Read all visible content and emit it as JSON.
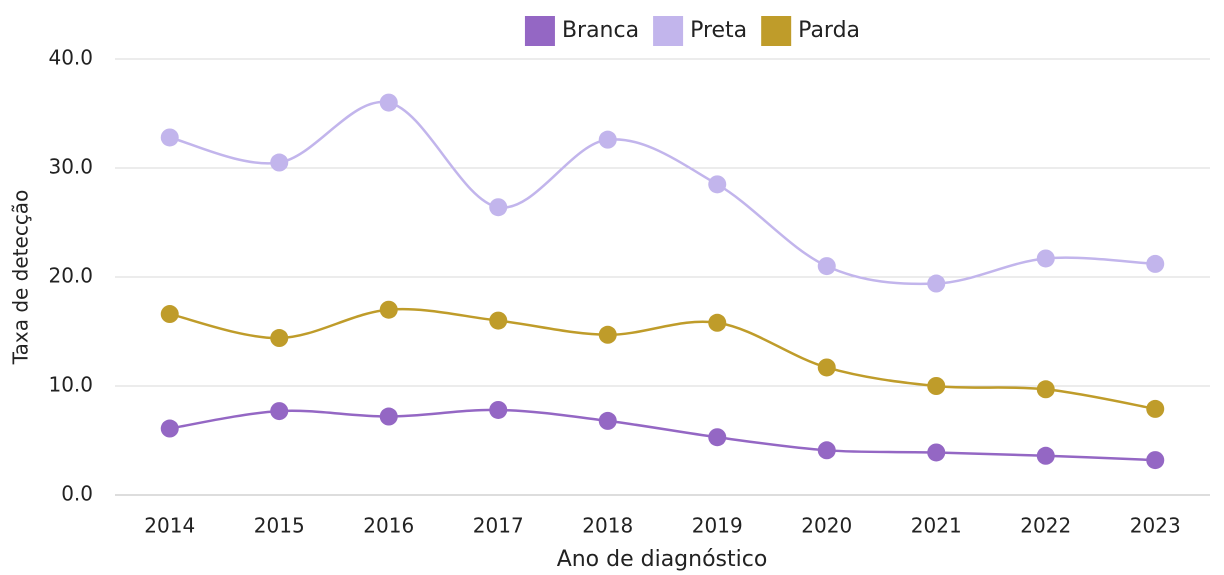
{
  "chart_data": {
    "type": "line",
    "x_label": "Ano de diagnóstico",
    "y_label": "Taxa de detecção",
    "categories": [
      "2014",
      "2015",
      "2016",
      "2017",
      "2018",
      "2019",
      "2020",
      "2021",
      "2022",
      "2023"
    ],
    "series": [
      {
        "name": "Branca",
        "color": "#9467c4",
        "values": [
          6.1,
          7.7,
          7.2,
          7.8,
          6.8,
          5.3,
          4.1,
          3.9,
          3.6,
          3.2
        ]
      },
      {
        "name": "Preta",
        "color": "#c2b5ec",
        "values": [
          32.8,
          30.5,
          36.0,
          26.4,
          32.6,
          28.5,
          21.0,
          19.4,
          21.7,
          21.2
        ]
      },
      {
        "name": "Parda",
        "color": "#bf9c2a",
        "values": [
          16.6,
          14.4,
          17.0,
          16.0,
          14.7,
          15.8,
          11.7,
          10.0,
          9.7,
          7.9
        ]
      }
    ],
    "ylim": [
      0,
      40
    ],
    "yticks": [
      {
        "value": 0,
        "label": "0.0"
      },
      {
        "value": 10,
        "label": "10.0"
      },
      {
        "value": 20,
        "label": "20.0"
      },
      {
        "value": 30,
        "label": "30.0"
      },
      {
        "value": 40,
        "label": "40.0"
      }
    ],
    "grid": true,
    "legend": "top"
  }
}
